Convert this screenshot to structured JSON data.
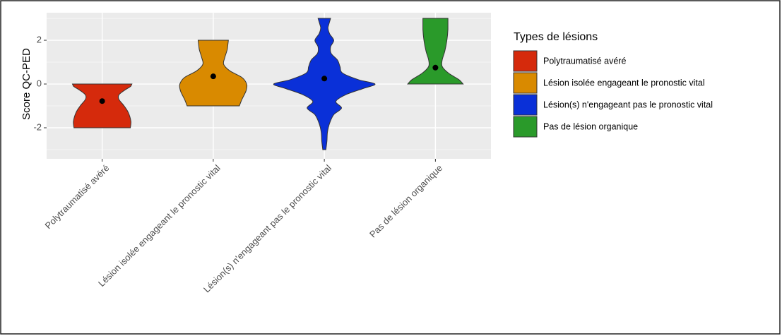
{
  "chart_data": {
    "type": "violin",
    "y_label": "Score QC-PED",
    "legend_title": "Types de lésions",
    "categories": [
      "Polytraumatisé avéré",
      "Lésion isolée engageant le pronostic vital",
      "Lésion(s) n'engageant pas le pronostic vital",
      "Pas de lésion organique"
    ],
    "series": [
      {
        "name": "Polytraumatisé avéré",
        "color": "#d52a0c",
        "mean": -0.78,
        "y": [
          -2,
          -1.7,
          -1.3,
          -1,
          -0.7,
          -0.5,
          -0.3,
          -0.1,
          0
        ],
        "density": [
          0.54,
          0.55,
          0.5,
          0.42,
          0.32,
          0.32,
          0.42,
          0.55,
          0.57
        ]
      },
      {
        "name": "Lésion isolée engageant le pronostic vital",
        "color": "#d98a00",
        "mean": 0.35,
        "y": [
          -1,
          -0.7,
          -0.3,
          0,
          0.3,
          0.6,
          0.9,
          1.2,
          1.6,
          2
        ],
        "density": [
          0.5,
          0.55,
          0.63,
          0.64,
          0.55,
          0.32,
          0.2,
          0.22,
          0.27,
          0.29
        ]
      },
      {
        "name": "Lésion(s) n'engageant pas le pronostic vital",
        "color": "#0a30d8",
        "mean": 0.25,
        "y": [
          -3,
          -2.6,
          -2.2,
          -1.8,
          -1.4,
          -1.1,
          -0.8,
          -0.5,
          -0.2,
          0,
          0.2,
          0.5,
          0.8,
          1.1,
          1.4,
          1.7,
          2,
          2.3,
          2.6,
          3
        ],
        "density": [
          0.03,
          0.05,
          0.06,
          0.1,
          0.18,
          0.33,
          0.22,
          0.4,
          0.75,
          0.97,
          0.65,
          0.35,
          0.3,
          0.25,
          0.13,
          0.12,
          0.18,
          0.1,
          0.07,
          0.12
        ]
      },
      {
        "name": "Pas de lésion organique",
        "color": "#2a9a2a",
        "mean": 0.75,
        "y": [
          0,
          0.2,
          0.5,
          0.8,
          1.1,
          1.5,
          2,
          2.5,
          3
        ],
        "density": [
          0.53,
          0.45,
          0.25,
          0.13,
          0.13,
          0.18,
          0.22,
          0.24,
          0.24
        ]
      }
    ],
    "ylim": [
      -3.42,
      3.26
    ],
    "yticks": [
      -2,
      0,
      2
    ],
    "yminor": [
      -3,
      -1,
      1,
      3
    ],
    "grid": true
  }
}
